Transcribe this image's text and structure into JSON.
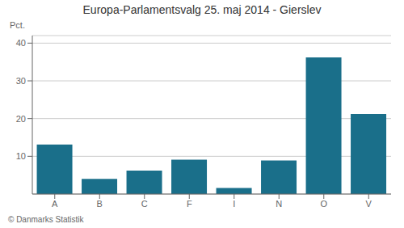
{
  "chart_data": {
    "type": "bar",
    "title": "Europa-Parlamentsvalg 25. maj 2014 - Gierslev",
    "categories": [
      "A",
      "B",
      "C",
      "F",
      "I",
      "N",
      "O",
      "V"
    ],
    "values": [
      13.1,
      4.0,
      6.2,
      9.1,
      1.6,
      8.9,
      36.2,
      21.2
    ],
    "color": "#1a6f8a",
    "ylabel": "Pct.",
    "ylim": [
      0,
      42
    ],
    "yticks": [
      10,
      20,
      30,
      40
    ],
    "grid": true,
    "annotations": [
      "© Danmarks Statistik"
    ]
  }
}
